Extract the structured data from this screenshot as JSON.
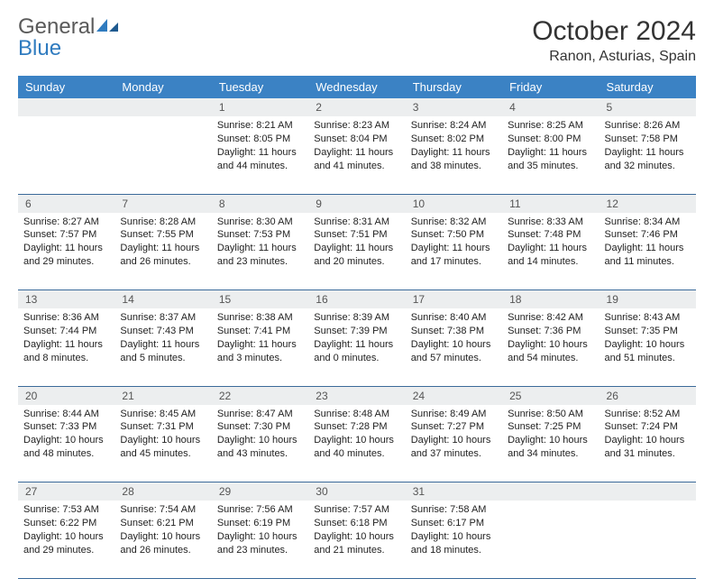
{
  "brand": {
    "word1": "General",
    "word2": "Blue"
  },
  "title": "October 2024",
  "location": "Ranon, Asturias, Spain",
  "colors": {
    "header_bg": "#3b82c4",
    "header_text": "#ffffff",
    "daynum_bg": "#eceeef",
    "row_divider": "#3b6a9a",
    "brand_gray": "#5a5a5a",
    "brand_blue": "#2f7bbf",
    "text": "#333333"
  },
  "typography": {
    "title_fontsize": 30,
    "location_fontsize": 16,
    "header_fontsize": 13,
    "daynum_fontsize": 12,
    "body_fontsize": 11
  },
  "day_headers": [
    "Sunday",
    "Monday",
    "Tuesday",
    "Wednesday",
    "Thursday",
    "Friday",
    "Saturday"
  ],
  "weeks": [
    [
      null,
      null,
      {
        "n": "1",
        "sr": "8:21 AM",
        "ss": "8:05 PM",
        "dl": "11 hours and 44 minutes."
      },
      {
        "n": "2",
        "sr": "8:23 AM",
        "ss": "8:04 PM",
        "dl": "11 hours and 41 minutes."
      },
      {
        "n": "3",
        "sr": "8:24 AM",
        "ss": "8:02 PM",
        "dl": "11 hours and 38 minutes."
      },
      {
        "n": "4",
        "sr": "8:25 AM",
        "ss": "8:00 PM",
        "dl": "11 hours and 35 minutes."
      },
      {
        "n": "5",
        "sr": "8:26 AM",
        "ss": "7:58 PM",
        "dl": "11 hours and 32 minutes."
      }
    ],
    [
      {
        "n": "6",
        "sr": "8:27 AM",
        "ss": "7:57 PM",
        "dl": "11 hours and 29 minutes."
      },
      {
        "n": "7",
        "sr": "8:28 AM",
        "ss": "7:55 PM",
        "dl": "11 hours and 26 minutes."
      },
      {
        "n": "8",
        "sr": "8:30 AM",
        "ss": "7:53 PM",
        "dl": "11 hours and 23 minutes."
      },
      {
        "n": "9",
        "sr": "8:31 AM",
        "ss": "7:51 PM",
        "dl": "11 hours and 20 minutes."
      },
      {
        "n": "10",
        "sr": "8:32 AM",
        "ss": "7:50 PM",
        "dl": "11 hours and 17 minutes."
      },
      {
        "n": "11",
        "sr": "8:33 AM",
        "ss": "7:48 PM",
        "dl": "11 hours and 14 minutes."
      },
      {
        "n": "12",
        "sr": "8:34 AM",
        "ss": "7:46 PM",
        "dl": "11 hours and 11 minutes."
      }
    ],
    [
      {
        "n": "13",
        "sr": "8:36 AM",
        "ss": "7:44 PM",
        "dl": "11 hours and 8 minutes."
      },
      {
        "n": "14",
        "sr": "8:37 AM",
        "ss": "7:43 PM",
        "dl": "11 hours and 5 minutes."
      },
      {
        "n": "15",
        "sr": "8:38 AM",
        "ss": "7:41 PM",
        "dl": "11 hours and 3 minutes."
      },
      {
        "n": "16",
        "sr": "8:39 AM",
        "ss": "7:39 PM",
        "dl": "11 hours and 0 minutes."
      },
      {
        "n": "17",
        "sr": "8:40 AM",
        "ss": "7:38 PM",
        "dl": "10 hours and 57 minutes."
      },
      {
        "n": "18",
        "sr": "8:42 AM",
        "ss": "7:36 PM",
        "dl": "10 hours and 54 minutes."
      },
      {
        "n": "19",
        "sr": "8:43 AM",
        "ss": "7:35 PM",
        "dl": "10 hours and 51 minutes."
      }
    ],
    [
      {
        "n": "20",
        "sr": "8:44 AM",
        "ss": "7:33 PM",
        "dl": "10 hours and 48 minutes."
      },
      {
        "n": "21",
        "sr": "8:45 AM",
        "ss": "7:31 PM",
        "dl": "10 hours and 45 minutes."
      },
      {
        "n": "22",
        "sr": "8:47 AM",
        "ss": "7:30 PM",
        "dl": "10 hours and 43 minutes."
      },
      {
        "n": "23",
        "sr": "8:48 AM",
        "ss": "7:28 PM",
        "dl": "10 hours and 40 minutes."
      },
      {
        "n": "24",
        "sr": "8:49 AM",
        "ss": "7:27 PM",
        "dl": "10 hours and 37 minutes."
      },
      {
        "n": "25",
        "sr": "8:50 AM",
        "ss": "7:25 PM",
        "dl": "10 hours and 34 minutes."
      },
      {
        "n": "26",
        "sr": "8:52 AM",
        "ss": "7:24 PM",
        "dl": "10 hours and 31 minutes."
      }
    ],
    [
      {
        "n": "27",
        "sr": "7:53 AM",
        "ss": "6:22 PM",
        "dl": "10 hours and 29 minutes."
      },
      {
        "n": "28",
        "sr": "7:54 AM",
        "ss": "6:21 PM",
        "dl": "10 hours and 26 minutes."
      },
      {
        "n": "29",
        "sr": "7:56 AM",
        "ss": "6:19 PM",
        "dl": "10 hours and 23 minutes."
      },
      {
        "n": "30",
        "sr": "7:57 AM",
        "ss": "6:18 PM",
        "dl": "10 hours and 21 minutes."
      },
      {
        "n": "31",
        "sr": "7:58 AM",
        "ss": "6:17 PM",
        "dl": "10 hours and 18 minutes."
      },
      null,
      null
    ]
  ],
  "labels": {
    "sunrise": "Sunrise:",
    "sunset": "Sunset:",
    "daylight": "Daylight:"
  }
}
